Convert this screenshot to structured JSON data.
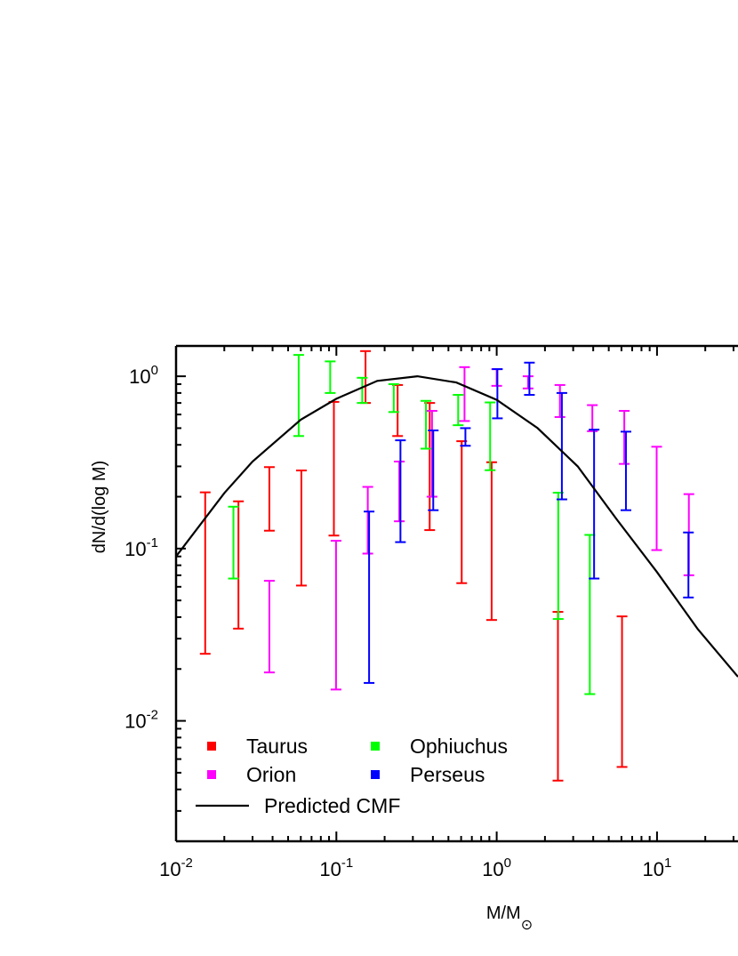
{
  "chart_data": {
    "type": "scatter",
    "title": "",
    "xlabel": "M/M⊙",
    "ylabel": "dN/d(log M)",
    "xscale": "log",
    "yscale": "log",
    "xlim": [
      0.01,
      32
    ],
    "ylim": [
      0.002,
      1.5
    ],
    "x_ticks": [
      {
        "value": 0.01,
        "base": "10",
        "exp": "-2"
      },
      {
        "value": 0.1,
        "base": "10",
        "exp": "-1"
      },
      {
        "value": 1,
        "base": "10",
        "exp": "0"
      },
      {
        "value": 10,
        "base": "10",
        "exp": "1"
      }
    ],
    "y_ticks": [
      {
        "value": 0.01,
        "base": "10",
        "exp": "-2"
      },
      {
        "value": 0.1,
        "base": "10",
        "exp": "-1"
      },
      {
        "value": 1,
        "base": "10",
        "exp": "0"
      }
    ],
    "grid": false,
    "legend_position": "bottom-left",
    "error_bar_series": [
      {
        "name": "Taurus",
        "color": "#ff0000",
        "bars": [
          {
            "x": 0.0152,
            "low": 0.0245,
            "high": 0.212
          },
          {
            "x": 0.0245,
            "low": 0.0343,
            "high": 0.188
          },
          {
            "x": 0.0382,
            "low": 0.127,
            "high": 0.297
          },
          {
            "x": 0.0605,
            "low": 0.061,
            "high": 0.284
          },
          {
            "x": 0.0965,
            "low": 0.119,
            "high": 0.71
          },
          {
            "x": 0.152,
            "low": 0.7,
            "high": 1.4
          },
          {
            "x": 0.241,
            "low": 0.45,
            "high": 0.89
          },
          {
            "x": 0.382,
            "low": 0.128,
            "high": 0.7
          },
          {
            "x": 0.605,
            "low": 0.063,
            "high": 0.42
          },
          {
            "x": 0.93,
            "low": 0.0385,
            "high": 0.317
          },
          {
            "x": 2.41,
            "low": 0.0045,
            "high": 0.0429
          },
          {
            "x": 6.05,
            "low": 0.0054,
            "high": 0.0404
          }
        ]
      },
      {
        "name": "Ophiuchus",
        "color": "#00ff00",
        "bars": [
          {
            "x": 0.0228,
            "low": 0.067,
            "high": 0.175
          },
          {
            "x": 0.0582,
            "low": 0.45,
            "high": 1.33
          },
          {
            "x": 0.0915,
            "low": 0.8,
            "high": 1.22
          },
          {
            "x": 0.145,
            "low": 0.7,
            "high": 0.98
          },
          {
            "x": 0.228,
            "low": 0.62,
            "high": 0.9
          },
          {
            "x": 0.362,
            "low": 0.38,
            "high": 0.72
          },
          {
            "x": 0.575,
            "low": 0.52,
            "high": 0.78
          },
          {
            "x": 0.91,
            "low": 0.285,
            "high": 0.705
          },
          {
            "x": 2.42,
            "low": 0.039,
            "high": 0.211
          },
          {
            "x": 3.81,
            "low": 0.0143,
            "high": 0.12
          }
        ]
      },
      {
        "name": "Orion",
        "color": "#ff00ff",
        "bars": [
          {
            "x": 0.0382,
            "low": 0.0191,
            "high": 0.065
          },
          {
            "x": 0.0995,
            "low": 0.0152,
            "high": 0.111
          },
          {
            "x": 0.157,
            "low": 0.0935,
            "high": 0.228
          },
          {
            "x": 0.247,
            "low": 0.144,
            "high": 0.32
          },
          {
            "x": 0.395,
            "low": 0.2,
            "high": 0.63
          },
          {
            "x": 0.63,
            "low": 0.55,
            "high": 1.13
          },
          {
            "x": 1.0,
            "low": 0.88,
            "high": 1.1
          },
          {
            "x": 1.57,
            "low": 0.85,
            "high": 1.0
          },
          {
            "x": 2.48,
            "low": 0.58,
            "high": 0.89
          },
          {
            "x": 3.95,
            "low": 0.48,
            "high": 0.68
          },
          {
            "x": 6.25,
            "low": 0.31,
            "high": 0.63
          },
          {
            "x": 9.95,
            "low": 0.098,
            "high": 0.39
          },
          {
            "x": 15.8,
            "low": 0.07,
            "high": 0.207
          }
        ]
      },
      {
        "name": "Perseus",
        "color": "#0000ff",
        "bars": [
          {
            "x": 0.16,
            "low": 0.0166,
            "high": 0.164
          },
          {
            "x": 0.251,
            "low": 0.109,
            "high": 0.425
          },
          {
            "x": 0.402,
            "low": 0.167,
            "high": 0.485
          },
          {
            "x": 0.638,
            "low": 0.395,
            "high": 0.5
          },
          {
            "x": 1.01,
            "low": 0.57,
            "high": 1.1
          },
          {
            "x": 1.6,
            "low": 0.78,
            "high": 1.2
          },
          {
            "x": 2.55,
            "low": 0.193,
            "high": 0.8
          },
          {
            "x": 4.05,
            "low": 0.067,
            "high": 0.49
          },
          {
            "x": 6.4,
            "low": 0.167,
            "high": 0.477
          },
          {
            "x": 15.7,
            "low": 0.052,
            "high": 0.124
          }
        ]
      }
    ],
    "line_series": [
      {
        "name": "Predicted CMF",
        "color": "#000000",
        "points": [
          [
            0.01,
            0.09
          ],
          [
            0.02,
            0.21
          ],
          [
            0.03,
            0.32
          ],
          [
            0.06,
            0.56
          ],
          [
            0.1,
            0.74
          ],
          [
            0.18,
            0.94
          ],
          [
            0.32,
            1.0
          ],
          [
            0.56,
            0.92
          ],
          [
            1.0,
            0.73
          ],
          [
            1.8,
            0.5
          ],
          [
            3.2,
            0.3
          ],
          [
            5.6,
            0.148
          ],
          [
            10,
            0.073
          ],
          [
            18,
            0.034
          ],
          [
            32,
            0.018
          ]
        ]
      }
    ],
    "legend_entries": [
      {
        "label": "Taurus",
        "color": "#ff0000",
        "marker": "square"
      },
      {
        "label": "Ophiuchus",
        "color": "#00ff00",
        "marker": "square"
      },
      {
        "label": "Orion",
        "color": "#ff00ff",
        "marker": "square"
      },
      {
        "label": "Perseus",
        "color": "#0000ff",
        "marker": "square"
      },
      {
        "label": "Predicted CMF",
        "color": "#000000",
        "marker": "line"
      }
    ]
  }
}
